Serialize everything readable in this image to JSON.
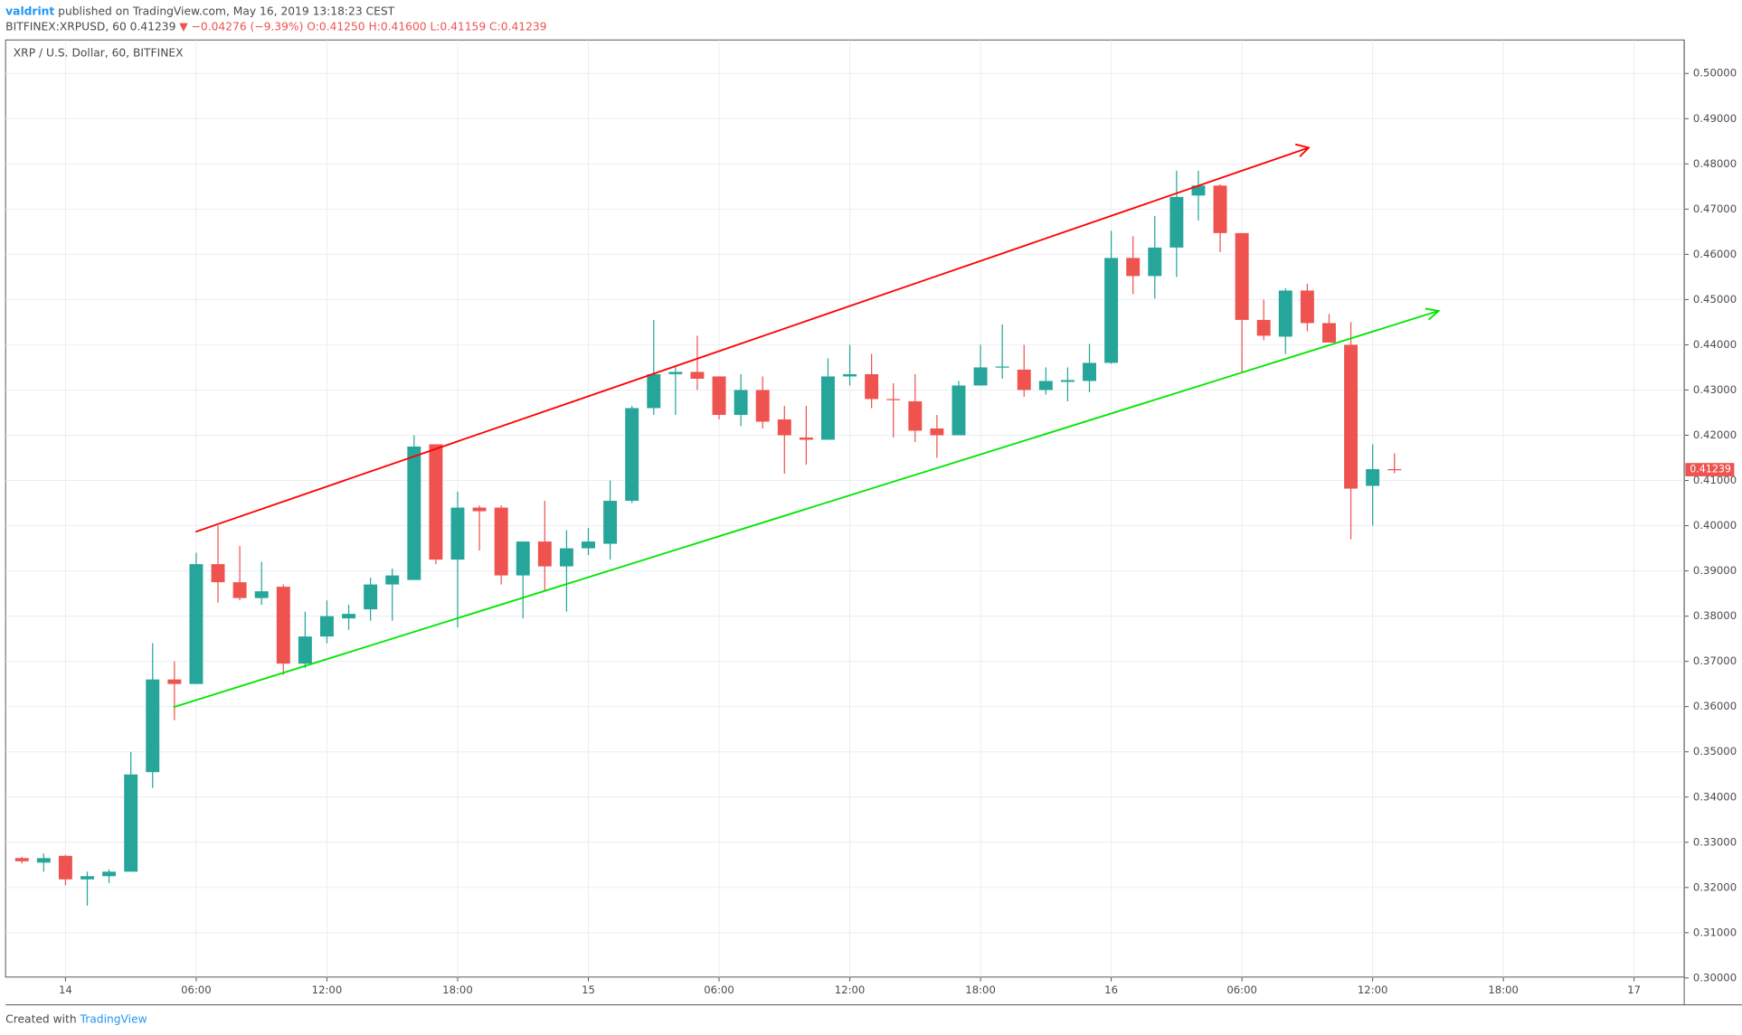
{
  "header": {
    "author": "valdrint",
    "published": "published on TradingView.com, May 16, 2019 13:18:23 CEST"
  },
  "info": {
    "symbol": "BITFINEX:XRPUSD, 60",
    "last": "0.41239",
    "change": "▼ −0.04276 (−9.39%)",
    "open": "O:0.41250",
    "high": "H:0.41600",
    "low": "L:0.41159",
    "close": "C:0.41239"
  },
  "footer": {
    "created": "Created with",
    "brand": "TradingView"
  },
  "chart_data": {
    "type": "candlestick",
    "title": "XRP / U.S. Dollar, 60, BITFINEX",
    "last_price_label": "0.41239",
    "up_color": "#26a69a",
    "down_color": "#ef5350",
    "grid": true,
    "x": [
      -2,
      -1,
      0,
      1,
      2,
      3,
      4,
      5,
      6,
      7,
      8,
      9,
      10,
      11,
      12,
      13,
      14,
      15,
      16,
      17,
      18,
      19,
      20,
      21,
      22,
      23,
      24,
      25,
      26,
      27,
      28,
      29,
      30,
      31,
      32,
      33,
      34,
      35,
      36,
      37,
      38,
      39,
      40,
      41,
      42,
      43,
      44,
      45,
      46,
      47,
      48,
      49,
      50,
      51,
      52,
      53,
      54,
      55,
      56,
      57,
      58,
      59,
      60,
      61
    ],
    "open": [
      0.3265,
      0.3255,
      0.327,
      0.3218,
      0.3225,
      0.3235,
      0.3455,
      0.366,
      0.365,
      0.3915,
      0.3875,
      0.384,
      0.3865,
      0.3695,
      0.3755,
      0.3795,
      0.3815,
      0.387,
      0.388,
      0.418,
      0.3925,
      0.404,
      0.404,
      0.389,
      0.3965,
      0.391,
      0.395,
      0.396,
      0.4055,
      0.426,
      0.4335,
      0.434,
      0.433,
      0.4245,
      0.43,
      0.4235,
      0.4195,
      0.419,
      0.433,
      0.4335,
      0.428,
      0.4275,
      0.4215,
      0.42,
      0.431,
      0.435,
      0.4345,
      0.43,
      0.4318,
      0.432,
      0.436,
      0.4592,
      0.4552,
      0.4615,
      0.473,
      0.4752,
      0.4647,
      0.4455,
      0.4418,
      0.452,
      0.4448,
      0.44,
      0.4088,
      0.4125
    ],
    "high": [
      0.3268,
      0.3275,
      0.3272,
      0.3235,
      0.324,
      0.35,
      0.374,
      0.37,
      0.394,
      0.4,
      0.3955,
      0.392,
      0.387,
      0.381,
      0.3835,
      0.3825,
      0.3885,
      0.3905,
      0.42,
      0.418,
      0.4075,
      0.4045,
      0.4045,
      0.3965,
      0.4055,
      0.399,
      0.3995,
      0.41,
      0.4265,
      0.4455,
      0.4355,
      0.442,
      0.433,
      0.4335,
      0.433,
      0.4265,
      0.4265,
      0.437,
      0.44,
      0.438,
      0.4315,
      0.4335,
      0.4245,
      0.432,
      0.44,
      0.4445,
      0.44,
      0.435,
      0.435,
      0.4402,
      0.4652,
      0.464,
      0.4685,
      0.4785,
      0.4785,
      0.4755,
      0.4647,
      0.45,
      0.4525,
      0.4535,
      0.4468,
      0.445,
      0.418,
      0.416
    ],
    "low": [
      0.3253,
      0.3235,
      0.3205,
      0.316,
      0.321,
      0.3235,
      0.342,
      0.357,
      0.365,
      0.383,
      0.3835,
      0.3825,
      0.367,
      0.3685,
      0.374,
      0.377,
      0.379,
      0.379,
      0.388,
      0.3915,
      0.3775,
      0.3945,
      0.387,
      0.3795,
      0.3855,
      0.381,
      0.3935,
      0.3925,
      0.405,
      0.4245,
      0.4245,
      0.43,
      0.4235,
      0.422,
      0.4215,
      0.4115,
      0.4135,
      0.419,
      0.431,
      0.426,
      0.4195,
      0.4185,
      0.415,
      0.42,
      0.431,
      0.4325,
      0.4285,
      0.429,
      0.4275,
      0.4295,
      0.4358,
      0.4512,
      0.4502,
      0.455,
      0.4675,
      0.4605,
      0.4337,
      0.441,
      0.438,
      0.443,
      0.4405,
      0.397,
      0.4,
      0.41159
    ],
    "close": [
      0.3258,
      0.3265,
      0.3218,
      0.3225,
      0.3235,
      0.345,
      0.366,
      0.365,
      0.3915,
      0.3875,
      0.384,
      0.3855,
      0.3695,
      0.3755,
      0.38,
      0.3805,
      0.387,
      0.389,
      0.4175,
      0.3925,
      0.404,
      0.4032,
      0.389,
      0.3965,
      0.391,
      0.395,
      0.3965,
      0.4055,
      0.426,
      0.4335,
      0.434,
      0.4325,
      0.4245,
      0.43,
      0.423,
      0.42,
      0.419,
      0.433,
      0.4335,
      0.428,
      0.4278,
      0.421,
      0.42,
      0.431,
      0.435,
      0.4352,
      0.43,
      0.432,
      0.4322,
      0.436,
      0.4592,
      0.4552,
      0.4615,
      0.4727,
      0.4752,
      0.4647,
      0.4455,
      0.442,
      0.452,
      0.4448,
      0.4405,
      0.4082,
      0.4125,
      0.41239
    ],
    "xlim": [
      -2.75,
      74.3
    ],
    "xticks": [
      {
        "value": 0,
        "label": "14"
      },
      {
        "value": 6,
        "label": "06:00"
      },
      {
        "value": 12,
        "label": "12:00"
      },
      {
        "value": 18,
        "label": "18:00"
      },
      {
        "value": 24,
        "label": "15"
      },
      {
        "value": 30,
        "label": "06:00"
      },
      {
        "value": 36,
        "label": "12:00"
      },
      {
        "value": 42,
        "label": "18:00"
      },
      {
        "value": 48,
        "label": "16"
      },
      {
        "value": 54,
        "label": "06:00"
      },
      {
        "value": 60,
        "label": "12:00"
      },
      {
        "value": 66,
        "label": "18:00"
      },
      {
        "value": 72,
        "label": "17"
      }
    ],
    "ylim": [
      0.3002,
      0.5074
    ],
    "yticks": [
      {
        "value": 0.3,
        "label": "0.30000"
      },
      {
        "value": 0.31,
        "label": "0.31000"
      },
      {
        "value": 0.32,
        "label": "0.32000"
      },
      {
        "value": 0.33,
        "label": "0.33000"
      },
      {
        "value": 0.34,
        "label": "0.34000"
      },
      {
        "value": 0.35,
        "label": "0.35000"
      },
      {
        "value": 0.36,
        "label": "0.36000"
      },
      {
        "value": 0.37,
        "label": "0.37000"
      },
      {
        "value": 0.38,
        "label": "0.38000"
      },
      {
        "value": 0.39,
        "label": "0.39000"
      },
      {
        "value": 0.4,
        "label": "0.40000"
      },
      {
        "value": 0.41,
        "label": "0.41000"
      },
      {
        "value": 0.42,
        "label": "0.42000"
      },
      {
        "value": 0.43,
        "label": "0.43000"
      },
      {
        "value": 0.44,
        "label": "0.44000"
      },
      {
        "value": 0.45,
        "label": "0.45000"
      },
      {
        "value": 0.46,
        "label": "0.46000"
      },
      {
        "value": 0.47,
        "label": "0.47000"
      },
      {
        "value": 0.48,
        "label": "0.48000"
      },
      {
        "value": 0.49,
        "label": "0.49000"
      },
      {
        "value": 0.5,
        "label": "0.50000"
      }
    ]
  }
}
